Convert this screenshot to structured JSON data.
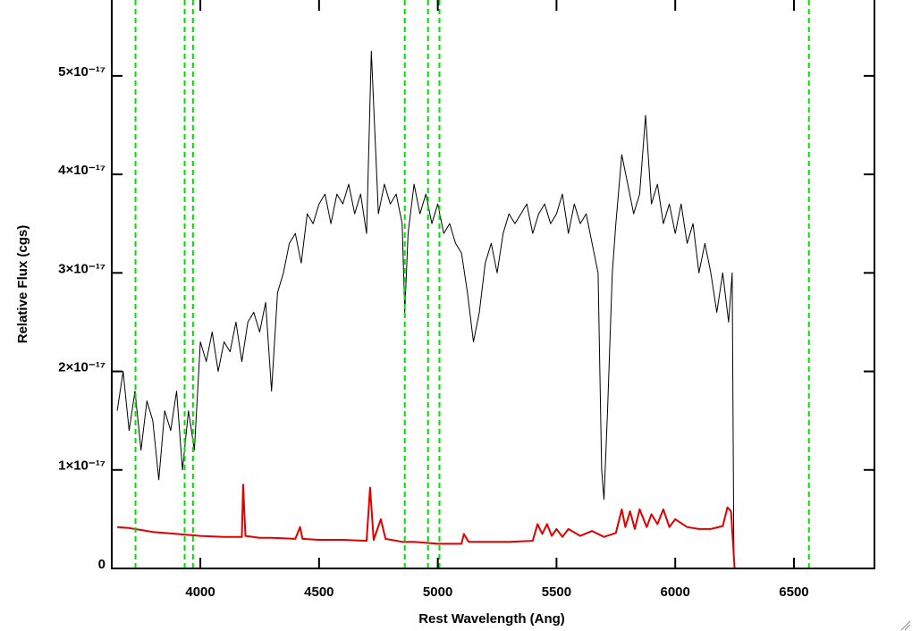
{
  "chart_data": {
    "type": "line",
    "xlabel": "Rest Wavelength (Ang)",
    "ylabel": "Relative Flux (cgs)",
    "xlim": [
      3627,
      6839
    ],
    "ylim": [
      0,
      5.77e-17
    ],
    "xticks": [
      4000,
      4500,
      5000,
      5500,
      6000,
      6500
    ],
    "yticks": [
      0,
      {
        "value": 1e-17,
        "label": "1×10⁻¹⁷"
      },
      {
        "value": 2e-17,
        "label": "2×10⁻¹⁷"
      },
      {
        "value": 3e-17,
        "label": "3×10⁻¹⁷"
      },
      {
        "value": 4e-17,
        "label": "4×10⁻¹⁷"
      },
      {
        "value": 5e-17,
        "label": "5×10⁻¹⁷"
      }
    ],
    "vlines": [
      3727,
      3934,
      3969,
      4861,
      4959,
      5007,
      6563
    ],
    "vline_color": "#00e000",
    "series": [
      {
        "color": "#000000",
        "x": [
          3650,
          3675,
          3700,
          3725,
          3750,
          3775,
          3800,
          3825,
          3850,
          3875,
          3900,
          3925,
          3950,
          3975,
          4000,
          4025,
          4050,
          4075,
          4100,
          4125,
          4150,
          4175,
          4200,
          4225,
          4250,
          4275,
          4300,
          4325,
          4350,
          4375,
          4400,
          4425,
          4450,
          4475,
          4500,
          4525,
          4550,
          4575,
          4600,
          4625,
          4650,
          4675,
          4700,
          4720,
          4750,
          4775,
          4800,
          4825,
          4850,
          4861,
          4875,
          4900,
          4925,
          4950,
          4975,
          5000,
          5025,
          5050,
          5075,
          5100,
          5125,
          5150,
          5175,
          5200,
          5225,
          5250,
          5275,
          5300,
          5325,
          5350,
          5375,
          5400,
          5425,
          5450,
          5475,
          5500,
          5525,
          5550,
          5575,
          5600,
          5625,
          5650,
          5675,
          5690,
          5700,
          5715,
          5735,
          5750,
          5775,
          5800,
          5825,
          5850,
          5875,
          5900,
          5925,
          5950,
          5975,
          6000,
          6025,
          6050,
          6075,
          6100,
          6125,
          6150,
          6175,
          6200,
          6225,
          6240,
          6247
        ],
        "values": [
          1.6e-17,
          2e-17,
          1.4e-17,
          1.8e-17,
          1.2e-17,
          1.7e-17,
          1.5e-17,
          9e-18,
          1.6e-17,
          1.4e-17,
          1.8e-17,
          1e-17,
          1.6e-17,
          1.2e-17,
          2.3e-17,
          2.1e-17,
          2.4e-17,
          2e-17,
          2.3e-17,
          2.2e-17,
          2.5e-17,
          2.1e-17,
          2.5e-17,
          2.6e-17,
          2.4e-17,
          2.7e-17,
          1.8e-17,
          2.8e-17,
          3e-17,
          3.3e-17,
          3.4e-17,
          3.1e-17,
          3.6e-17,
          3.5e-17,
          3.7e-17,
          3.8e-17,
          3.5e-17,
          3.8e-17,
          3.7e-17,
          3.9e-17,
          3.6e-17,
          3.8e-17,
          3.4e-17,
          5.25e-17,
          3.6e-17,
          3.9e-17,
          3.7e-17,
          3.8e-17,
          3.5e-17,
          2.6e-17,
          3.4e-17,
          3.9e-17,
          3.6e-17,
          3.8e-17,
          3.5e-17,
          3.7e-17,
          3.4e-17,
          3.5e-17,
          3.3e-17,
          3.2e-17,
          2.8e-17,
          2.3e-17,
          2.6e-17,
          3.1e-17,
          3.3e-17,
          3e-17,
          3.4e-17,
          3.6e-17,
          3.5e-17,
          3.6e-17,
          3.7e-17,
          3.4e-17,
          3.6e-17,
          3.7e-17,
          3.5e-17,
          3.6e-17,
          3.8e-17,
          3.4e-17,
          3.7e-17,
          3.5e-17,
          3.6e-17,
          3.3e-17,
          3e-17,
          1e-17,
          7e-18,
          1.6e-17,
          3e-17,
          3.5e-17,
          4.2e-17,
          3.9e-17,
          3.6e-17,
          3.8e-17,
          4.6e-17,
          3.7e-17,
          3.9e-17,
          3.5e-17,
          3.7e-17,
          3.4e-17,
          3.7e-17,
          3.3e-17,
          3.5e-17,
          3e-17,
          3.3e-17,
          3e-17,
          2.6e-17,
          3e-17,
          2.5e-17,
          3e-17,
          1e-18
        ]
      },
      {
        "color": "#e00000",
        "x": [
          3650,
          3700,
          3750,
          3800,
          3850,
          3900,
          3950,
          4000,
          4100,
          4175,
          4180,
          4190,
          4250,
          4300,
          4400,
          4420,
          4430,
          4500,
          4600,
          4700,
          4715,
          4730,
          4760,
          4780,
          4850,
          4900,
          5000,
          5100,
          5110,
          5130,
          5200,
          5300,
          5400,
          5420,
          5440,
          5460,
          5480,
          5500,
          5525,
          5550,
          5600,
          5650,
          5700,
          5750,
          5775,
          5790,
          5810,
          5830,
          5850,
          5880,
          5900,
          5925,
          5950,
          5975,
          6000,
          6050,
          6100,
          6150,
          6200,
          6220,
          6235,
          6250,
          6839
        ],
        "values": [
          4.2e-18,
          4.1e-18,
          3.9e-18,
          3.7e-18,
          3.6e-18,
          3.5e-18,
          3.4e-18,
          3.3e-18,
          3.2e-18,
          3.2e-18,
          8.5e-18,
          3.3e-18,
          3.1e-18,
          3.1e-18,
          3e-18,
          4.2e-18,
          3e-18,
          2.9e-18,
          2.9e-18,
          2.8e-18,
          8.2e-18,
          2.9e-18,
          5e-18,
          3e-18,
          2.7e-18,
          2.7e-18,
          2.5e-18,
          2.5e-18,
          3.5e-18,
          2.7e-18,
          2.7e-18,
          2.7e-18,
          2.8e-18,
          4.5e-18,
          3.5e-18,
          4.5e-18,
          3.3e-18,
          4e-18,
          3.2e-18,
          4e-18,
          3.3e-18,
          3.8e-18,
          3.2e-18,
          3.6e-18,
          6e-18,
          4.2e-18,
          5.8e-18,
          4e-18,
          6e-18,
          4.2e-18,
          5.5e-18,
          4.5e-18,
          6e-18,
          4.2e-18,
          5e-18,
          4.2e-18,
          4e-18,
          4e-18,
          4.3e-18,
          6.2e-18,
          5.8e-18,
          0,
          0
        ]
      }
    ]
  }
}
